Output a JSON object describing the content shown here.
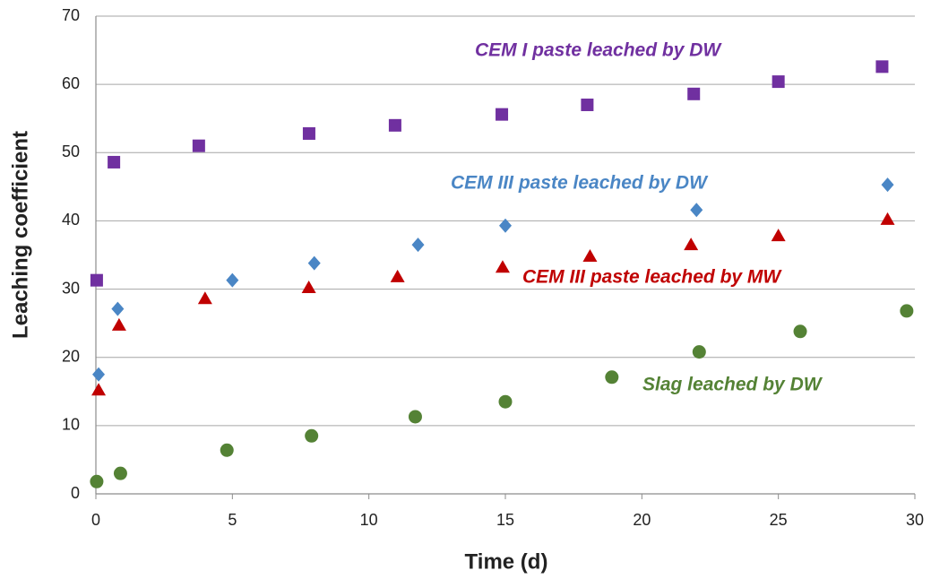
{
  "chart_data": {
    "type": "scatter",
    "x_label": "Time (d)",
    "y_label": "Leaching coefficient",
    "xlim": [
      0,
      30
    ],
    "xticks": [
      0,
      5,
      10,
      15,
      20,
      25,
      30
    ],
    "ylim": [
      0,
      70
    ],
    "yticks": [
      0,
      10,
      20,
      30,
      40,
      50,
      60,
      70
    ],
    "grid": true,
    "series": [
      {
        "name": "CEM I paste leached by DW",
        "color": "#7030a0",
        "marker": "square",
        "x": [
          0.03,
          0.66,
          3.77,
          7.81,
          10.96,
          14.87,
          18.0,
          21.9,
          25.0,
          28.8
        ],
        "values": [
          31.3,
          48.6,
          51.0,
          52.8,
          54.0,
          55.6,
          57.0,
          58.6,
          60.4,
          62.6
        ]
      },
      {
        "name": "CEM III paste leached by DW",
        "color": "#4a86c5",
        "marker": "diamond",
        "x": [
          0.1,
          0.8,
          5.0,
          8.0,
          11.8,
          15.0,
          22.0,
          29.0
        ],
        "values": [
          17.5,
          27.1,
          31.3,
          33.8,
          36.5,
          39.3,
          41.6,
          45.3
        ]
      },
      {
        "name": "CEM III paste leached by MW",
        "color": "#c00000",
        "marker": "triangle",
        "x": [
          0.1,
          0.85,
          4.0,
          7.8,
          11.05,
          14.9,
          18.1,
          21.8,
          25.0,
          29.0
        ],
        "values": [
          15.2,
          24.7,
          28.6,
          30.2,
          31.8,
          33.2,
          34.8,
          36.5,
          37.8,
          40.2
        ]
      },
      {
        "name": "Slag leached by DW",
        "color": "#548235",
        "marker": "circle",
        "x": [
          0.03,
          0.9,
          4.8,
          7.9,
          11.7,
          15.0,
          18.9,
          22.1,
          25.8,
          29.7
        ],
        "values": [
          1.8,
          3.0,
          6.4,
          8.5,
          11.3,
          13.5,
          17.1,
          20.8,
          23.8,
          26.8
        ]
      }
    ]
  }
}
